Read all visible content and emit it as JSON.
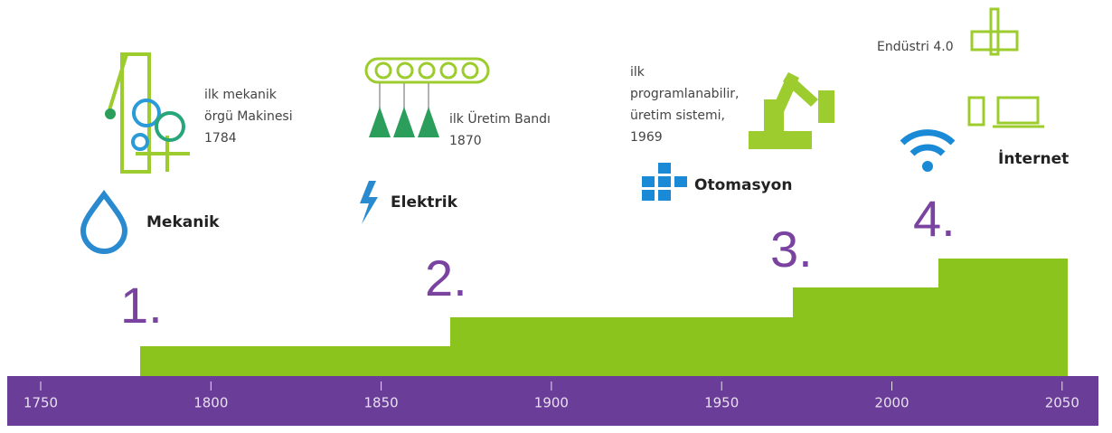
{
  "timeline": {
    "ticks": [
      "1750",
      "1800",
      "1850",
      "1900",
      "1950",
      "2000",
      "2050"
    ]
  },
  "stages": [
    {
      "number": "1.",
      "label": "Mekanik",
      "caption": [
        "ilk mekanik",
        "örgü Makinesi",
        "1784"
      ]
    },
    {
      "number": "2.",
      "label": "Elektrik",
      "caption": [
        "ilk Üretim Bandı",
        "1870"
      ]
    },
    {
      "number": "3.",
      "label": "Otomasyon",
      "caption": [
        "ilk",
        "programlanabilir,",
        "üretim sistemi,",
        "1969"
      ]
    },
    {
      "number": "4.",
      "label": "İnternet",
      "caption": [
        "Endüstri 4.0"
      ]
    }
  ]
}
